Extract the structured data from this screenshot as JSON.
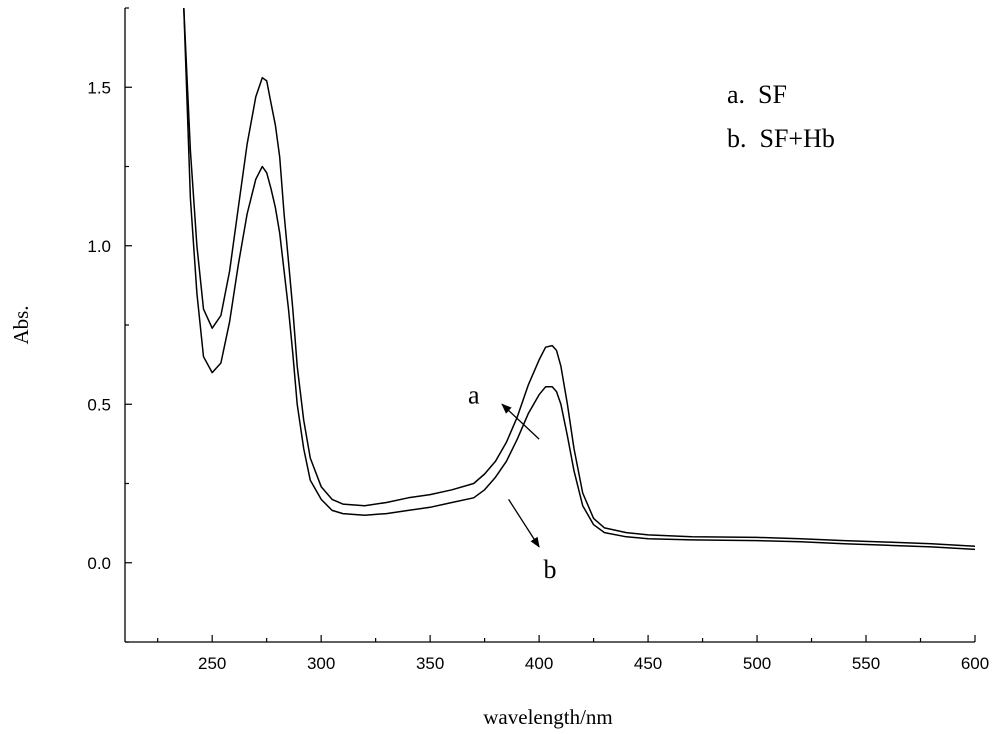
{
  "chart_data": {
    "type": "line",
    "title": "",
    "xlabel": "wavelength/nm",
    "ylabel": "Abs.",
    "xlim": [
      210,
      600
    ],
    "ylim": [
      -0.25,
      1.75
    ],
    "x_ticks": [
      250,
      300,
      350,
      400,
      450,
      500,
      550,
      600
    ],
    "x_tick_labels": [
      "250",
      "300",
      "350",
      "400",
      "450",
      "500",
      "550",
      "600"
    ],
    "x_minor_ticks": [
      225,
      275,
      325,
      375,
      425,
      475,
      525,
      575
    ],
    "y_ticks": [
      0.0,
      0.5,
      1.0,
      1.5
    ],
    "y_tick_labels": [
      "0.0",
      "0.5",
      "1.0",
      "1.5"
    ],
    "y_minor_ticks": [
      -0.25,
      0.25,
      0.75,
      1.25,
      1.75
    ],
    "grid": false,
    "legend": {
      "placement": "top-right",
      "entries": [
        "a.  SF",
        "b.  SF+Hb"
      ]
    },
    "series": [
      {
        "x": [
          237,
          240,
          243,
          246,
          250,
          254,
          258,
          262,
          266,
          270,
          273,
          275,
          277,
          279,
          281,
          283,
          285,
          287,
          289,
          292,
          295,
          300,
          305,
          310,
          320,
          330,
          340,
          350,
          360,
          370,
          375,
          380,
          385,
          390,
          395,
          400,
          403,
          406,
          408,
          410,
          413,
          416,
          420,
          425,
          430,
          440,
          450,
          470,
          500,
          520,
          540,
          560,
          580,
          600
        ],
        "y": [
          1.75,
          1.3,
          1.0,
          0.8,
          0.74,
          0.78,
          0.92,
          1.12,
          1.32,
          1.47,
          1.53,
          1.52,
          1.45,
          1.38,
          1.28,
          1.1,
          0.95,
          0.8,
          0.62,
          0.45,
          0.33,
          0.24,
          0.2,
          0.185,
          0.18,
          0.19,
          0.205,
          0.215,
          0.23,
          0.25,
          0.28,
          0.32,
          0.38,
          0.46,
          0.56,
          0.64,
          0.68,
          0.685,
          0.67,
          0.62,
          0.5,
          0.36,
          0.22,
          0.14,
          0.11,
          0.095,
          0.088,
          0.082,
          0.08,
          0.076,
          0.07,
          0.065,
          0.06,
          0.052
        ]
      },
      {
        "x": [
          237,
          240,
          243,
          246,
          250,
          254,
          258,
          262,
          266,
          270,
          273,
          275,
          277,
          279,
          281,
          283,
          285,
          287,
          289,
          292,
          295,
          300,
          305,
          310,
          320,
          330,
          340,
          350,
          360,
          370,
          375,
          380,
          385,
          390,
          395,
          400,
          403,
          406,
          408,
          410,
          413,
          416,
          420,
          425,
          430,
          440,
          450,
          470,
          500,
          520,
          540,
          560,
          580,
          600
        ],
        "y": [
          1.75,
          1.15,
          0.85,
          0.65,
          0.6,
          0.63,
          0.76,
          0.94,
          1.1,
          1.21,
          1.25,
          1.23,
          1.18,
          1.12,
          1.04,
          0.92,
          0.8,
          0.66,
          0.5,
          0.36,
          0.26,
          0.2,
          0.165,
          0.155,
          0.15,
          0.155,
          0.165,
          0.175,
          0.19,
          0.205,
          0.23,
          0.27,
          0.32,
          0.39,
          0.47,
          0.53,
          0.555,
          0.555,
          0.54,
          0.5,
          0.4,
          0.29,
          0.18,
          0.12,
          0.095,
          0.082,
          0.076,
          0.072,
          0.07,
          0.066,
          0.06,
          0.055,
          0.05,
          0.042
        ]
      }
    ],
    "annotations": [
      {
        "text": "a",
        "x": 370,
        "y": 0.53,
        "arrow_from": [
          400,
          0.39
        ],
        "arrow_to": [
          383,
          0.5
        ]
      },
      {
        "text": "b",
        "x": 405,
        "y": -0.02,
        "arrow_from": [
          386,
          0.2
        ],
        "arrow_to": [
          400,
          0.05
        ]
      }
    ]
  }
}
